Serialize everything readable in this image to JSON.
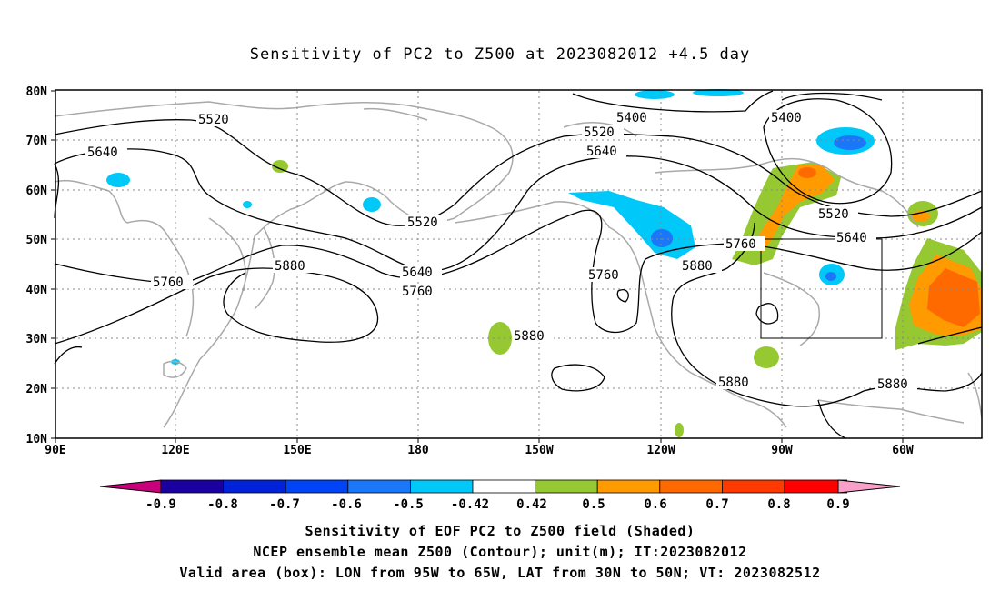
{
  "title": "Sensitivity of PC2 to Z500 at 2023082012 +4.5 day",
  "lat_labels": [
    "80N",
    "70N",
    "60N",
    "50N",
    "40N",
    "30N",
    "20N",
    "10N"
  ],
  "lon_labels": [
    "90E",
    "120E",
    "150E",
    "180",
    "150W",
    "120W",
    "90W",
    "60W"
  ],
  "contour_labels": {
    "c5520_a": "5520",
    "c5520_b": "5520",
    "c5520_c": "5520",
    "c5520_d": "5520",
    "c5400_a": "5400",
    "c5400_b": "5400",
    "c5640_a": "5640",
    "c5640_b": "5640",
    "c5640_c": "5640",
    "c5640_d": "5640",
    "c5760_a": "5760",
    "c5760_b": "5760",
    "c5760_c": "5760",
    "c5760_d": "5760",
    "c5880_a": "5880",
    "c5880_b": "5880",
    "c5880_c": "5880",
    "c5880_d": "5880",
    "c5880_e": "5880"
  },
  "colorbar": {
    "labels": [
      "-0.9",
      "-0.8",
      "-0.7",
      "-0.6",
      "-0.5",
      "-0.42",
      "0.42",
      "0.5",
      "0.6",
      "0.7",
      "0.8",
      "0.9"
    ],
    "colors": [
      "#1a00a0",
      "#0022d8",
      "#0044f8",
      "#1a78f8",
      "#00c8f8",
      "#ffffff",
      "#96c832",
      "#ff9a00",
      "#ff6a00",
      "#ff3a00",
      "#ff0000"
    ],
    "low_end_color": "#c8007a",
    "high_end_color": "#f8a0c8"
  },
  "footer": {
    "line1": "Sensitivity of EOF PC2 to Z500 field (Shaded)",
    "line2": "NCEP ensemble mean Z500 (Contour); unit(m); IT:2023082012",
    "line3": "Valid area (box): LON from 95W to 65W, LAT from 30N to 50N; VT: 2023082512"
  }
}
